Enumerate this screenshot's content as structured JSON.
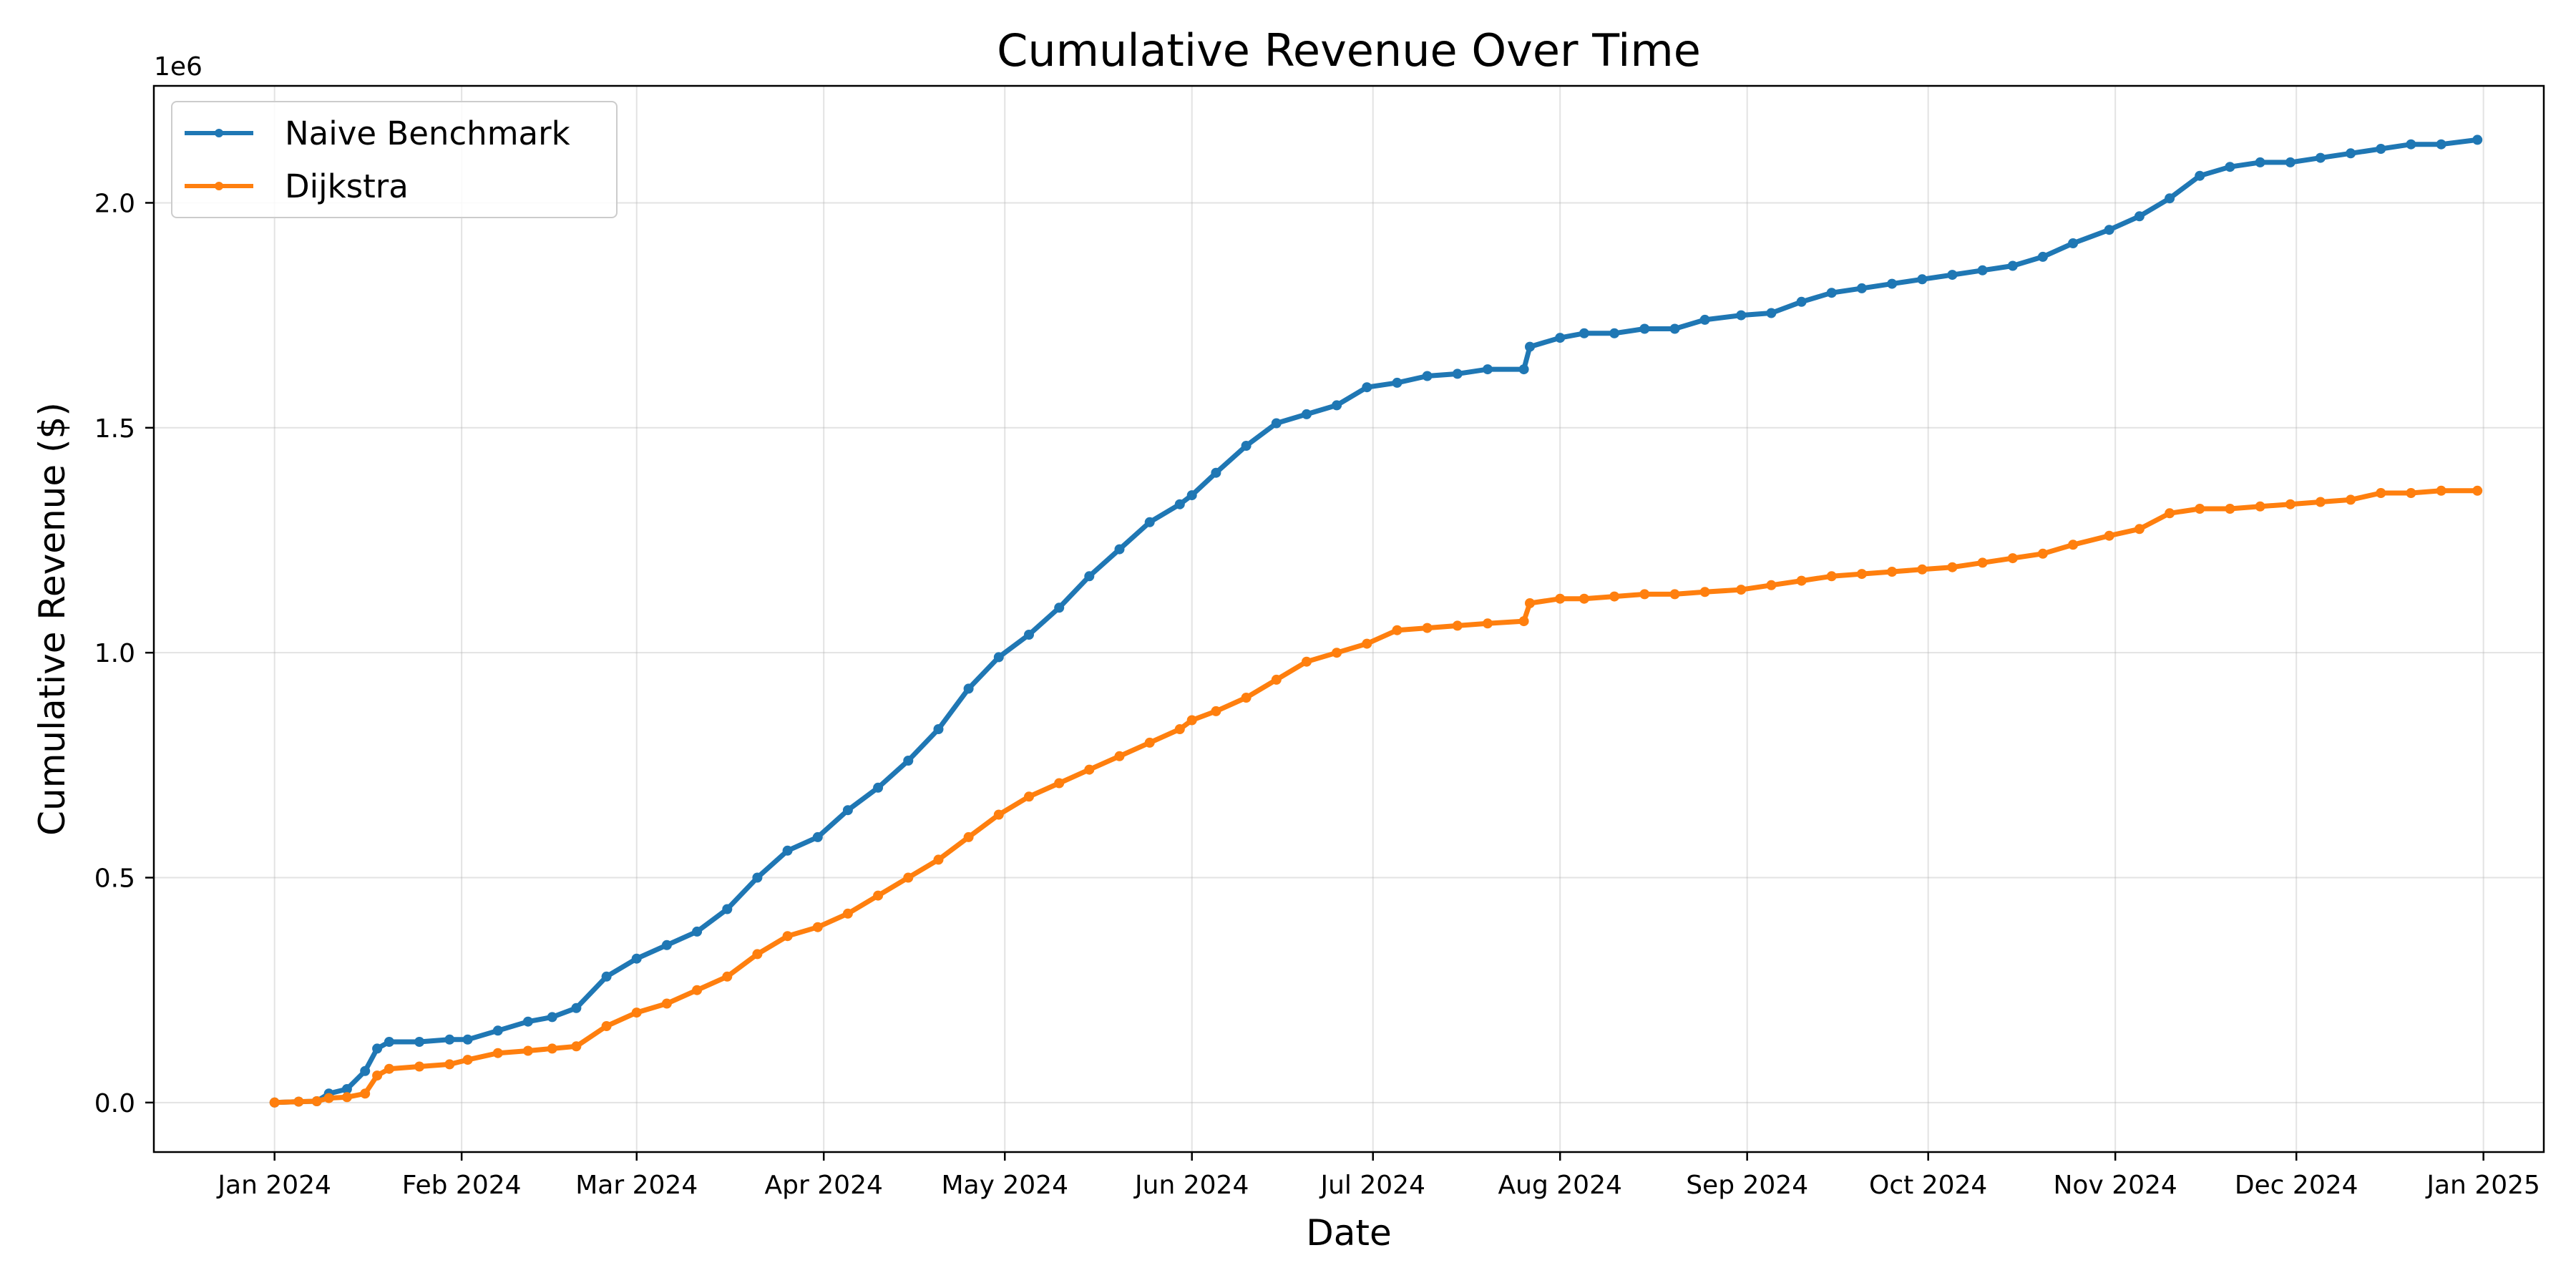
{
  "chart_data": {
    "type": "line",
    "title": "Cumulative Revenue Over Time",
    "xlabel": "Date",
    "ylabel": "Cumulative Revenue ($)",
    "y_offset_label": "1e6",
    "x_ticks": [
      "Jan 2024",
      "Feb 2024",
      "Mar 2024",
      "Apr 2024",
      "May 2024",
      "Jun 2024",
      "Jul 2024",
      "Aug 2024",
      "Sep 2024",
      "Oct 2024",
      "Nov 2024",
      "Dec 2024",
      "Jan 2025"
    ],
    "y_ticks": [
      "0.0",
      "0.5",
      "1.0",
      "1.5",
      "2.0"
    ],
    "y_tick_values": [
      0,
      0.5,
      1.0,
      1.5,
      2.0
    ],
    "xlim": [
      "2023-12-12",
      "2025-01-11"
    ],
    "ylim": [
      -0.11,
      2.26
    ],
    "grid": true,
    "legend_position": "top-left",
    "series": [
      {
        "name": "Naive Benchmark",
        "color": "#1f77b4",
        "x": [
          "2024-01-01",
          "2024-01-05",
          "2024-01-08",
          "2024-01-10",
          "2024-01-13",
          "2024-01-16",
          "2024-01-18",
          "2024-01-20",
          "2024-01-25",
          "2024-01-30",
          "2024-02-02",
          "2024-02-07",
          "2024-02-12",
          "2024-02-16",
          "2024-02-20",
          "2024-02-25",
          "2024-03-01",
          "2024-03-06",
          "2024-03-11",
          "2024-03-16",
          "2024-03-21",
          "2024-03-26",
          "2024-03-31",
          "2024-04-05",
          "2024-04-10",
          "2024-04-15",
          "2024-04-20",
          "2024-04-25",
          "2024-04-30",
          "2024-05-05",
          "2024-05-10",
          "2024-05-15",
          "2024-05-20",
          "2024-05-25",
          "2024-05-30",
          "2024-06-01",
          "2024-06-05",
          "2024-06-10",
          "2024-06-15",
          "2024-06-20",
          "2024-06-25",
          "2024-06-30",
          "2024-07-05",
          "2024-07-10",
          "2024-07-15",
          "2024-07-20",
          "2024-07-26",
          "2024-07-27",
          "2024-08-01",
          "2024-08-05",
          "2024-08-10",
          "2024-08-15",
          "2024-08-20",
          "2024-08-25",
          "2024-08-31",
          "2024-09-05",
          "2024-09-10",
          "2024-09-15",
          "2024-09-20",
          "2024-09-25",
          "2024-09-30",
          "2024-10-05",
          "2024-10-10",
          "2024-10-15",
          "2024-10-20",
          "2024-10-25",
          "2024-10-31",
          "2024-11-05",
          "2024-11-10",
          "2024-11-15",
          "2024-11-20",
          "2024-11-25",
          "2024-11-30",
          "2024-12-05",
          "2024-12-10",
          "2024-12-15",
          "2024-12-20",
          "2024-12-25",
          "2024-12-31"
        ],
        "y": [
          0.0,
          0.002,
          0.003,
          0.02,
          0.03,
          0.07,
          0.12,
          0.135,
          0.135,
          0.14,
          0.14,
          0.16,
          0.18,
          0.19,
          0.21,
          0.28,
          0.32,
          0.35,
          0.38,
          0.43,
          0.5,
          0.56,
          0.59,
          0.65,
          0.7,
          0.76,
          0.83,
          0.92,
          0.99,
          1.04,
          1.1,
          1.17,
          1.23,
          1.29,
          1.33,
          1.35,
          1.4,
          1.46,
          1.51,
          1.53,
          1.55,
          1.59,
          1.6,
          1.615,
          1.62,
          1.63,
          1.63,
          1.68,
          1.7,
          1.71,
          1.71,
          1.72,
          1.72,
          1.74,
          1.75,
          1.755,
          1.78,
          1.8,
          1.81,
          1.82,
          1.83,
          1.84,
          1.85,
          1.86,
          1.88,
          1.91,
          1.94,
          1.97,
          2.01,
          2.06,
          2.08,
          2.09,
          2.09,
          2.1,
          2.11,
          2.12,
          2.13,
          2.13,
          2.14
        ]
      },
      {
        "name": "Dijkstra",
        "color": "#ff7f0e",
        "x": [
          "2024-01-01",
          "2024-01-05",
          "2024-01-08",
          "2024-01-10",
          "2024-01-13",
          "2024-01-16",
          "2024-01-18",
          "2024-01-20",
          "2024-01-25",
          "2024-01-30",
          "2024-02-02",
          "2024-02-07",
          "2024-02-12",
          "2024-02-16",
          "2024-02-20",
          "2024-02-25",
          "2024-03-01",
          "2024-03-06",
          "2024-03-11",
          "2024-03-16",
          "2024-03-21",
          "2024-03-26",
          "2024-03-31",
          "2024-04-05",
          "2024-04-10",
          "2024-04-15",
          "2024-04-20",
          "2024-04-25",
          "2024-04-30",
          "2024-05-05",
          "2024-05-10",
          "2024-05-15",
          "2024-05-20",
          "2024-05-25",
          "2024-05-30",
          "2024-06-01",
          "2024-06-05",
          "2024-06-10",
          "2024-06-15",
          "2024-06-20",
          "2024-06-25",
          "2024-06-30",
          "2024-07-05",
          "2024-07-10",
          "2024-07-15",
          "2024-07-20",
          "2024-07-26",
          "2024-07-27",
          "2024-08-01",
          "2024-08-05",
          "2024-08-10",
          "2024-08-15",
          "2024-08-20",
          "2024-08-25",
          "2024-08-31",
          "2024-09-05",
          "2024-09-10",
          "2024-09-15",
          "2024-09-20",
          "2024-09-25",
          "2024-09-30",
          "2024-10-05",
          "2024-10-10",
          "2024-10-15",
          "2024-10-20",
          "2024-10-25",
          "2024-10-31",
          "2024-11-05",
          "2024-11-10",
          "2024-11-15",
          "2024-11-20",
          "2024-11-25",
          "2024-11-30",
          "2024-12-05",
          "2024-12-10",
          "2024-12-15",
          "2024-12-20",
          "2024-12-25",
          "2024-12-31"
        ],
        "y": [
          0.0,
          0.002,
          0.003,
          0.01,
          0.012,
          0.02,
          0.06,
          0.075,
          0.08,
          0.085,
          0.095,
          0.11,
          0.115,
          0.12,
          0.125,
          0.17,
          0.2,
          0.22,
          0.25,
          0.28,
          0.33,
          0.37,
          0.39,
          0.42,
          0.46,
          0.5,
          0.54,
          0.59,
          0.64,
          0.68,
          0.71,
          0.74,
          0.77,
          0.8,
          0.83,
          0.85,
          0.87,
          0.9,
          0.94,
          0.98,
          1.0,
          1.02,
          1.05,
          1.055,
          1.06,
          1.065,
          1.07,
          1.11,
          1.12,
          1.12,
          1.125,
          1.13,
          1.13,
          1.135,
          1.14,
          1.15,
          1.16,
          1.17,
          1.175,
          1.18,
          1.185,
          1.19,
          1.2,
          1.21,
          1.22,
          1.24,
          1.26,
          1.275,
          1.31,
          1.32,
          1.32,
          1.325,
          1.33,
          1.335,
          1.34,
          1.355,
          1.355,
          1.36,
          1.36
        ]
      }
    ]
  }
}
